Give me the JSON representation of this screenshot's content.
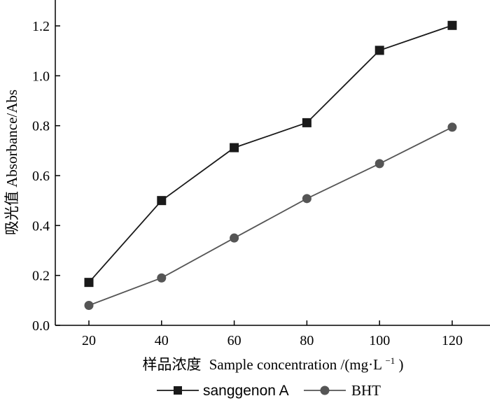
{
  "chart_data": {
    "type": "line",
    "title": "",
    "xlabel_cn": "样品浓度",
    "xlabel_en": "Sample concentration",
    "xlabel_unit_prefix": "/(mg·L",
    "xlabel_unit_sup": "−1",
    "xlabel_unit_suffix": ")",
    "ylabel": "吸光值 Absorbance/Abs",
    "x": [
      20,
      40,
      60,
      80,
      100,
      120
    ],
    "xticks": [
      "20",
      "40",
      "60",
      "80",
      "100",
      "120"
    ],
    "ylim": [
      0,
      1.3
    ],
    "yticks": [
      "0.0",
      "0.2",
      "0.4",
      "0.6",
      "0.8",
      "1.0",
      "1.2"
    ],
    "ytick_values": [
      0,
      0.2,
      0.4,
      0.6,
      0.8,
      1.0,
      1.2
    ],
    "series": [
      {
        "name": "sanggenon A",
        "marker": "square",
        "color": "#1a1a1a",
        "values": [
          0.172,
          0.5,
          0.712,
          0.812,
          1.102,
          1.202
        ]
      },
      {
        "name": "BHT",
        "marker": "circle",
        "color": "#555555",
        "values": [
          0.08,
          0.19,
          0.35,
          0.508,
          0.648,
          0.794
        ]
      }
    ],
    "legend_position": "bottom"
  }
}
